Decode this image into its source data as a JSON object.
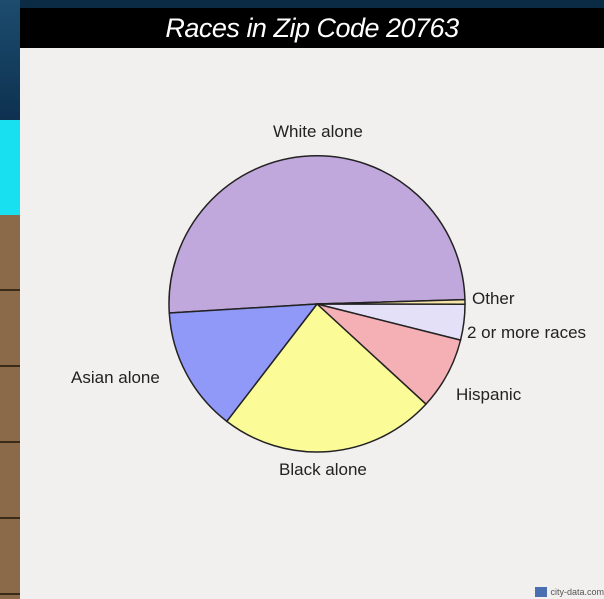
{
  "chart_data": {
    "type": "pie",
    "title": "Races in Zip Code 20763",
    "slices": [
      {
        "label": "White alone",
        "value": 50.5,
        "color": "#c0a8dc"
      },
      {
        "label": "Other",
        "value": 0.5,
        "color": "#f4e4a8"
      },
      {
        "label": "2 or more races",
        "value": 3.9,
        "color": "#e4e0f8"
      },
      {
        "label": "Hispanic",
        "value": 7.9,
        "color": "#f4b0b4"
      },
      {
        "label": "Black alone",
        "value": 23.6,
        "color": "#fbfb98"
      },
      {
        "label": "Asian alone",
        "value": 13.6,
        "color": "#9098f8"
      }
    ]
  },
  "watermark": "city-data.com"
}
